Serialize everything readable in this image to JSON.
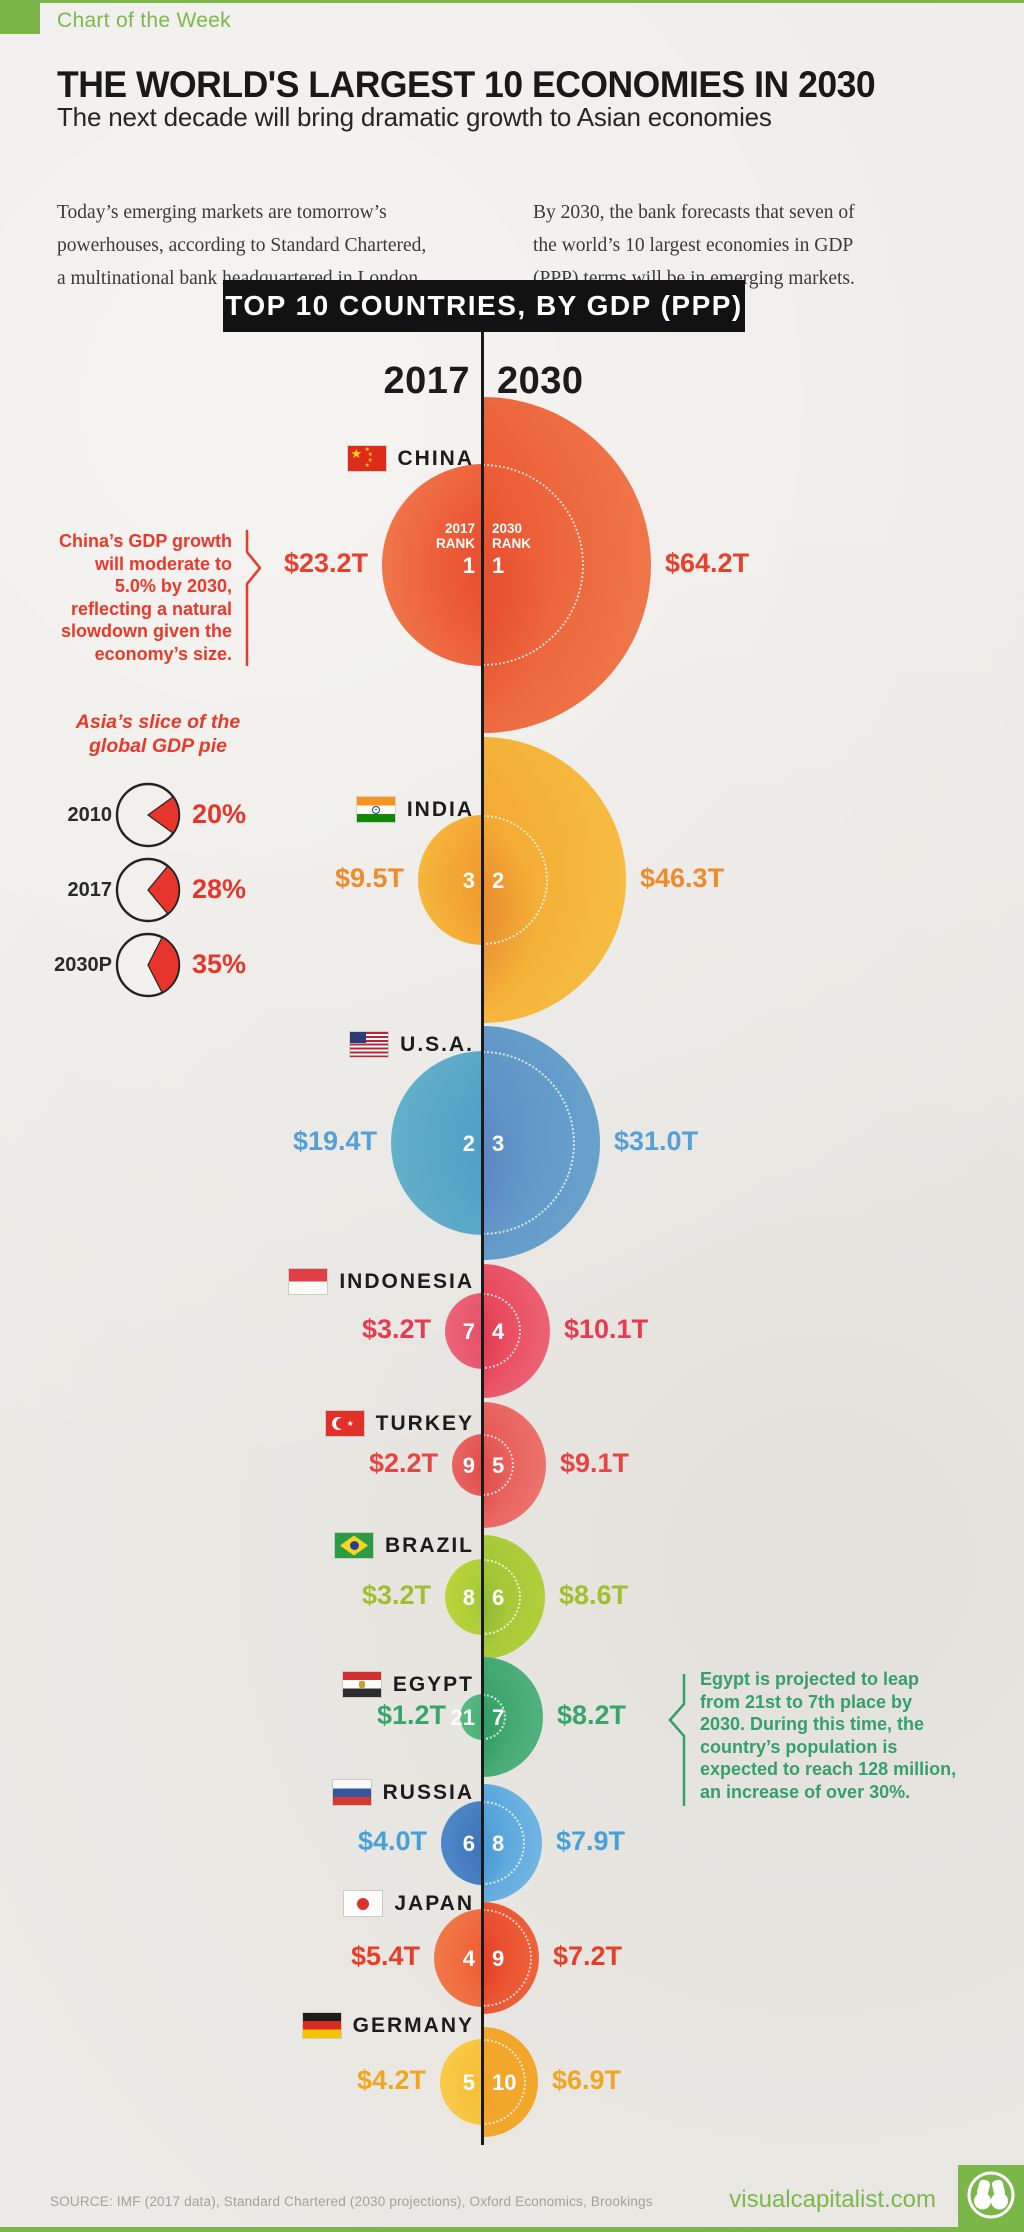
{
  "meta": {
    "badge": "Chart of the Week",
    "accent_green": "#7ab648",
    "paper": "#edebe7"
  },
  "header": {
    "title": "THE WORLD'S LARGEST 10 ECONOMIES IN 2030",
    "subtitle": "The next decade will bring dramatic growth to Asian economies"
  },
  "intro": {
    "left": "Today’s emerging markets are tomorrow’s\npowerhouses, according to Standard Chartered,\na multinational bank headquartered in London.",
    "right": "By 2030, the bank forecasts that seven of\nthe world’s 10 largest economies in GDP\n(PPP) terms will be in emerging markets."
  },
  "chart_data": {
    "type": "bubble",
    "title": "TOP 10 COUNTRIES, BY GDP (PPP)",
    "columns": [
      "2017",
      "2030"
    ],
    "rank_caption_left": "2017\nRANK",
    "rank_caption_right": "2030\nRANK",
    "unit_note": "values shown in trillions of dollars as printed on chart",
    "countries": [
      {
        "name": "CHINA",
        "flag": "china",
        "value_2017": 23.2,
        "value_2030": 64.2,
        "label_2017": "$23.2T",
        "label_2030": "$64.2T",
        "rank_2017": "1",
        "rank_2030": "1",
        "text_color": "#e8402c",
        "left_colors": [
          "#f0754a",
          "#e94c2e"
        ],
        "right_colors": [
          "#ea512f",
          "#f07e4e"
        ],
        "blotch": "#d8381f"
      },
      {
        "name": "INDIA",
        "flag": "india",
        "value_2017": 9.5,
        "value_2030": 46.3,
        "label_2017": "$9.5T",
        "label_2030": "$46.3T",
        "rank_2017": "3",
        "rank_2030": "2",
        "text_color": "#ef8b2b",
        "left_colors": [
          "#f6b73c",
          "#f1972b"
        ],
        "right_colors": [
          "#f3a52e",
          "#f7c045"
        ],
        "blotch": "#d14f2a"
      },
      {
        "name": "U.S.A.",
        "flag": "usa",
        "value_2017": 19.4,
        "value_2030": 31.0,
        "label_2017": "$19.4T",
        "label_2030": "$31.0T",
        "rank_2017": "2",
        "rank_2030": "3",
        "text_color": "#55a0d6",
        "left_colors": [
          "#62b0c9",
          "#4f9ec6"
        ],
        "right_colors": [
          "#5b8ec4",
          "#6aa6cd"
        ],
        "blotch": "#5d6fbd"
      },
      {
        "name": "INDONESIA",
        "flag": "indonesia",
        "value_2017": 3.2,
        "value_2030": 10.1,
        "label_2017": "$3.2T",
        "label_2030": "$10.1T",
        "rank_2017": "7",
        "rank_2030": "4",
        "text_color": "#e73b52",
        "left_colors": [
          "#ec6478",
          "#e64e66"
        ],
        "right_colors": [
          "#e63c52",
          "#ee6a7c"
        ],
        "blotch": "#d92a42"
      },
      {
        "name": "TURKEY",
        "flag": "turkey",
        "value_2017": 2.2,
        "value_2030": 9.1,
        "label_2017": "$2.2T",
        "label_2030": "$9.1T",
        "rank_2017": "9",
        "rank_2030": "5",
        "text_color": "#e74542",
        "left_colors": [
          "#e96562",
          "#e24a48"
        ],
        "right_colors": [
          "#e4504d",
          "#ee7a72"
        ],
        "blotch": "#d83530"
      },
      {
        "name": "BRAZIL",
        "flag": "brazil",
        "value_2017": 3.2,
        "value_2030": 8.6,
        "label_2017": "$3.2T",
        "label_2030": "$8.6T",
        "rank_2017": "8",
        "rank_2030": "6",
        "text_color": "#a3bf2f",
        "left_colors": [
          "#bcd53a",
          "#a4c837"
        ],
        "right_colors": [
          "#9ec336",
          "#b4d13c"
        ],
        "blotch": "#63a038"
      },
      {
        "name": "EGYPT",
        "flag": "egypt",
        "value_2017": 1.2,
        "value_2030": 8.2,
        "label_2017": "$1.2T",
        "label_2030": "$8.2T",
        "rank_2017": "21",
        "rank_2030": "7",
        "text_color": "#3aa56b",
        "left_colors": [
          "#58bb83",
          "#45ad72"
        ],
        "right_colors": [
          "#339f63",
          "#57b583"
        ],
        "blotch": "#1e8a52"
      },
      {
        "name": "RUSSIA",
        "flag": "russia",
        "value_2017": 4.0,
        "value_2030": 7.9,
        "label_2017": "$4.0T",
        "label_2030": "$7.9T",
        "rank_2017": "6",
        "rank_2030": "8",
        "text_color": "#47a0d9",
        "left_colors": [
          "#4d8ac8",
          "#3e72ba"
        ],
        "right_colors": [
          "#4a9cd6",
          "#79bbe5"
        ],
        "blotch": "#3a86c6"
      },
      {
        "name": "JAPAN",
        "flag": "japan",
        "value_2017": 5.4,
        "value_2030": 7.2,
        "label_2017": "$5.4T",
        "label_2030": "$7.2T",
        "rank_2017": "4",
        "rank_2030": "9",
        "text_color": "#e73d29",
        "left_colors": [
          "#f17a48",
          "#ee5c33"
        ],
        "right_colors": [
          "#e7402a",
          "#ef6a3c"
        ],
        "blotch": "#d83318"
      },
      {
        "name": "GERMANY",
        "flag": "germany",
        "value_2017": 4.2,
        "value_2030": 6.9,
        "label_2017": "$4.2T",
        "label_2030": "$6.9T",
        "rank_2017": "5",
        "rank_2030": "10",
        "text_color": "#f2a51f",
        "left_colors": [
          "#f9ca49",
          "#f7bd35"
        ],
        "right_colors": [
          "#f2a72b",
          "#f9c festivals"
        ],
        "blotch": "#ec9622"
      }
    ]
  },
  "annotations": {
    "china": "China’s GDP growth\nwill moderate to\n5.0% by 2030,\nreflecting a natural\nslowdown given the\neconomy’s size.",
    "egypt": "Egypt is projected to leap\nfrom 21st to 7th place by\n2030. During this time, the\ncountry’s population is\nexpected to reach 128 million,\nan increase of over 30%."
  },
  "asia_pie": {
    "type": "pie",
    "title": "Asia’s slice of the\nglobal GDP pie",
    "slice_color": "#e8352c",
    "rows": [
      {
        "label": "2010",
        "pct": 20,
        "pct_label": "20%"
      },
      {
        "label": "2017",
        "pct": 28,
        "pct_label": "28%"
      },
      {
        "label": "2030P",
        "pct": 35,
        "pct_label": "35%"
      }
    ]
  },
  "footer": {
    "source": "SOURCE: IMF (2017 data), Standard Chartered (2030 projections), Oxford Economics, Brookings",
    "site": "visualcapitalist.com"
  }
}
